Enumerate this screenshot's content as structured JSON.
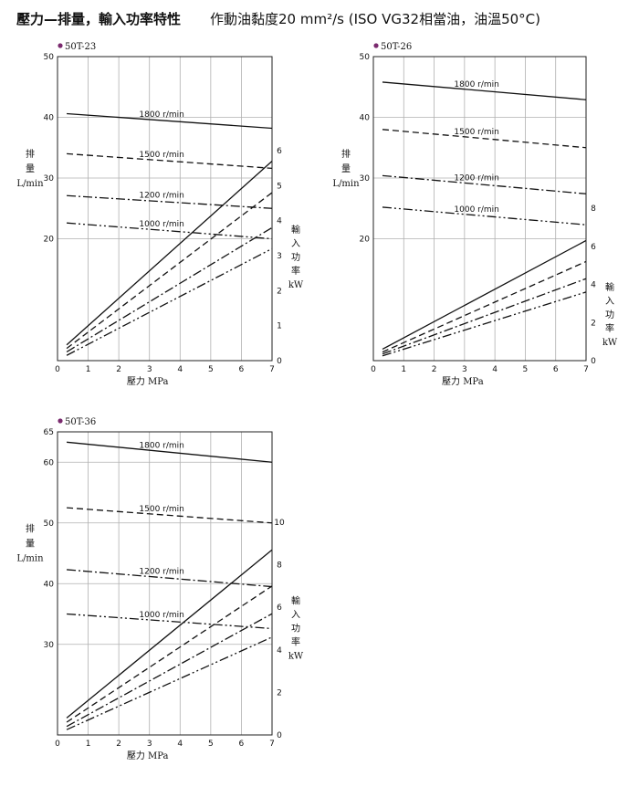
{
  "header": {
    "title": "壓力—排量，輸入功率特性",
    "condition": "作動油黏度20 mm²/s  (ISO VG32相當油，油溫50°C)"
  },
  "colors": {
    "line": "#111111",
    "grid": "#b0b0b0",
    "marker": "#7a2a6e"
  },
  "chart_data": [
    {
      "type": "line",
      "title": "50T-23",
      "xlabel": "壓力 MPa",
      "ylabel": [
        "排",
        "量",
        "L/min"
      ],
      "y2label": [
        "輸",
        "入",
        "功",
        "率",
        "kW"
      ],
      "xlim": [
        0,
        7
      ],
      "x_ticks": [
        0,
        1,
        2,
        3,
        4,
        5,
        6,
        7
      ],
      "ylim": [
        0,
        50
      ],
      "y_ticks": [
        20,
        30,
        40,
        50
      ],
      "y2lim": [
        0,
        7
      ],
      "y2_ticks": [
        0,
        1,
        2,
        3,
        4,
        5,
        6
      ],
      "grid": true,
      "flow_series": [
        {
          "name": "1800 r/min",
          "style": "solid",
          "x": [
            0.3,
            7
          ],
          "y": [
            40.6,
            38.2
          ]
        },
        {
          "name": "1500 r/min",
          "style": "dashed",
          "x": [
            0.3,
            7
          ],
          "y": [
            34.0,
            31.6
          ]
        },
        {
          "name": "1200 r/min",
          "style": "dashdot",
          "x": [
            0.3,
            7
          ],
          "y": [
            27.1,
            25.0
          ]
        },
        {
          "name": "1000 r/min",
          "style": "dashdotdot",
          "x": [
            0.3,
            7
          ],
          "y": [
            22.6,
            20.0
          ]
        }
      ],
      "power_series": [
        {
          "name": "1800 r/min",
          "style": "solid",
          "x": [
            0.3,
            7
          ],
          "y": [
            0.45,
            5.7
          ]
        },
        {
          "name": "1500 r/min",
          "style": "dashed",
          "x": [
            0.3,
            7
          ],
          "y": [
            0.35,
            4.8
          ]
        },
        {
          "name": "1200 r/min",
          "style": "dashdot",
          "x": [
            0.3,
            7
          ],
          "y": [
            0.25,
            3.8
          ]
        },
        {
          "name": "1000 r/min",
          "style": "dashdotdot",
          "x": [
            0.3,
            7
          ],
          "y": [
            0.15,
            3.2
          ]
        }
      ]
    },
    {
      "type": "line",
      "title": "50T-26",
      "xlabel": "壓力 MPa",
      "ylabel": [
        "排",
        "量",
        "L/min"
      ],
      "y2label": [
        "輸",
        "入",
        "功",
        "率",
        "kW"
      ],
      "xlim": [
        0,
        7
      ],
      "x_ticks": [
        0,
        1,
        2,
        3,
        4,
        5,
        6,
        7
      ],
      "ylim": [
        0,
        50
      ],
      "y_ticks": [
        20,
        30,
        40,
        50
      ],
      "y2lim": [
        0,
        10
      ],
      "y2_ticks": [
        0,
        2,
        4,
        6,
        8
      ],
      "grid": true,
      "flow_series": [
        {
          "name": "1800 r/min",
          "style": "solid",
          "x": [
            0.3,
            7
          ],
          "y": [
            45.8,
            42.9
          ]
        },
        {
          "name": "1500 r/min",
          "style": "dashed",
          "x": [
            0.3,
            7
          ],
          "y": [
            38.0,
            35.0
          ]
        },
        {
          "name": "1200 r/min",
          "style": "dashdot",
          "x": [
            0.3,
            7
          ],
          "y": [
            30.4,
            27.4
          ]
        },
        {
          "name": "1000 r/min",
          "style": "dashdotdot",
          "x": [
            0.3,
            7
          ],
          "y": [
            25.2,
            22.3
          ]
        }
      ],
      "power_series": [
        {
          "name": "1800 r/min",
          "style": "solid",
          "x": [
            0.3,
            7
          ],
          "y": [
            0.6,
            6.3
          ]
        },
        {
          "name": "1500 r/min",
          "style": "dashed",
          "x": [
            0.3,
            7
          ],
          "y": [
            0.45,
            5.2
          ]
        },
        {
          "name": "1200 r/min",
          "style": "dashdot",
          "x": [
            0.3,
            7
          ],
          "y": [
            0.35,
            4.3
          ]
        },
        {
          "name": "1000 r/min",
          "style": "dashdotdot",
          "x": [
            0.3,
            7
          ],
          "y": [
            0.25,
            3.6
          ]
        }
      ]
    },
    {
      "type": "line",
      "title": "50T-36",
      "xlabel": "壓力 MPa",
      "ylabel": [
        "排",
        "量",
        "L/min"
      ],
      "y2label": [
        "輸",
        "入",
        "功",
        "率",
        "kW"
      ],
      "xlim": [
        0,
        7
      ],
      "x_ticks": [
        0,
        1,
        2,
        3,
        4,
        5,
        6,
        7
      ],
      "ylim": [
        0,
        65
      ],
      "y_ticks": [
        30,
        40,
        50,
        60,
        65
      ],
      "y2lim": [
        0,
        15
      ],
      "y2_ticks": [
        0,
        2,
        4,
        6,
        8,
        10
      ],
      "grid": true,
      "flow_series": [
        {
          "name": "1800 r/min",
          "style": "solid",
          "x": [
            0.3,
            7
          ],
          "y": [
            63.3,
            60.0
          ]
        },
        {
          "name": "1500 r/min",
          "style": "dashed",
          "x": [
            0.3,
            7
          ],
          "y": [
            52.5,
            50.0
          ]
        },
        {
          "name": "1200 r/min",
          "style": "dashdot",
          "x": [
            0.3,
            7
          ],
          "y": [
            42.3,
            39.5
          ]
        },
        {
          "name": "1000 r/min",
          "style": "dashdotdot",
          "x": [
            0.3,
            7
          ],
          "y": [
            35.0,
            32.6
          ]
        }
      ],
      "power_series": [
        {
          "name": "1800 r/min",
          "style": "solid",
          "x": [
            0.3,
            7
          ],
          "y": [
            0.8,
            8.7
          ]
        },
        {
          "name": "1500 r/min",
          "style": "dashed",
          "x": [
            0.3,
            7
          ],
          "y": [
            0.6,
            7.0
          ]
        },
        {
          "name": "1200 r/min",
          "style": "dashdot",
          "x": [
            0.3,
            7
          ],
          "y": [
            0.4,
            5.7
          ]
        },
        {
          "name": "1000 r/min",
          "style": "dashdotdot",
          "x": [
            0.3,
            7
          ],
          "y": [
            0.25,
            4.6
          ]
        }
      ]
    }
  ]
}
